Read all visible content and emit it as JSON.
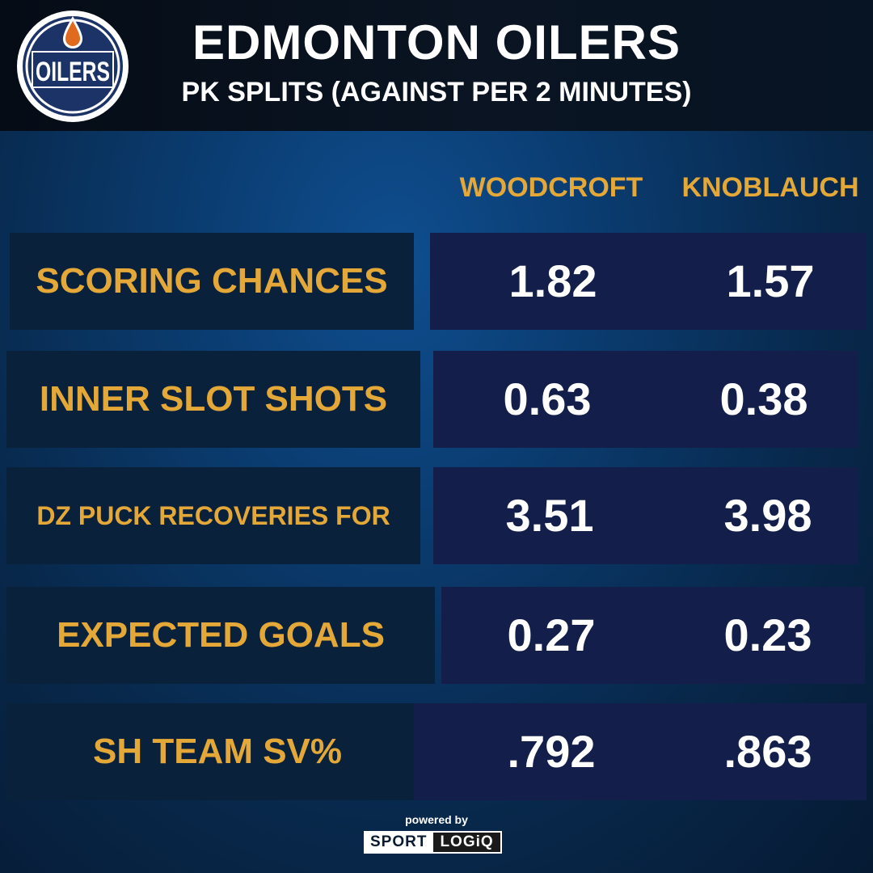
{
  "header": {
    "logo_text": "OILERS",
    "title": "EDMONTON OILERS",
    "subtitle": "PK SPLITS (AGAINST PER 2 MINUTES)"
  },
  "columns": [
    "WOODCROFT",
    "KNOBLAUCH"
  ],
  "rows": [
    {
      "label": "SCORING CHANCES",
      "woodcroft": "1.82",
      "knoblauch": "1.57"
    },
    {
      "label": "INNER SLOT SHOTS",
      "woodcroft": "0.63",
      "knoblauch": "0.38"
    },
    {
      "label": "DZ PUCK RECOVERIES FOR",
      "woodcroft": "3.51",
      "knoblauch": "3.98"
    },
    {
      "label": "EXPECTED GOALS",
      "woodcroft": "0.27",
      "knoblauch": "0.23"
    },
    {
      "label": "SH TEAM SV%",
      "woodcroft": ".792",
      "knoblauch": ".863"
    }
  ],
  "footer": {
    "powered_by": "powered by",
    "brand_part1": "SPORT",
    "brand_part2": "LOGiQ"
  },
  "colors": {
    "accent_gold": "#e4a838",
    "logo_navy": "#1c3368",
    "logo_orange": "#e06a1e",
    "text_white": "#ffffff"
  }
}
